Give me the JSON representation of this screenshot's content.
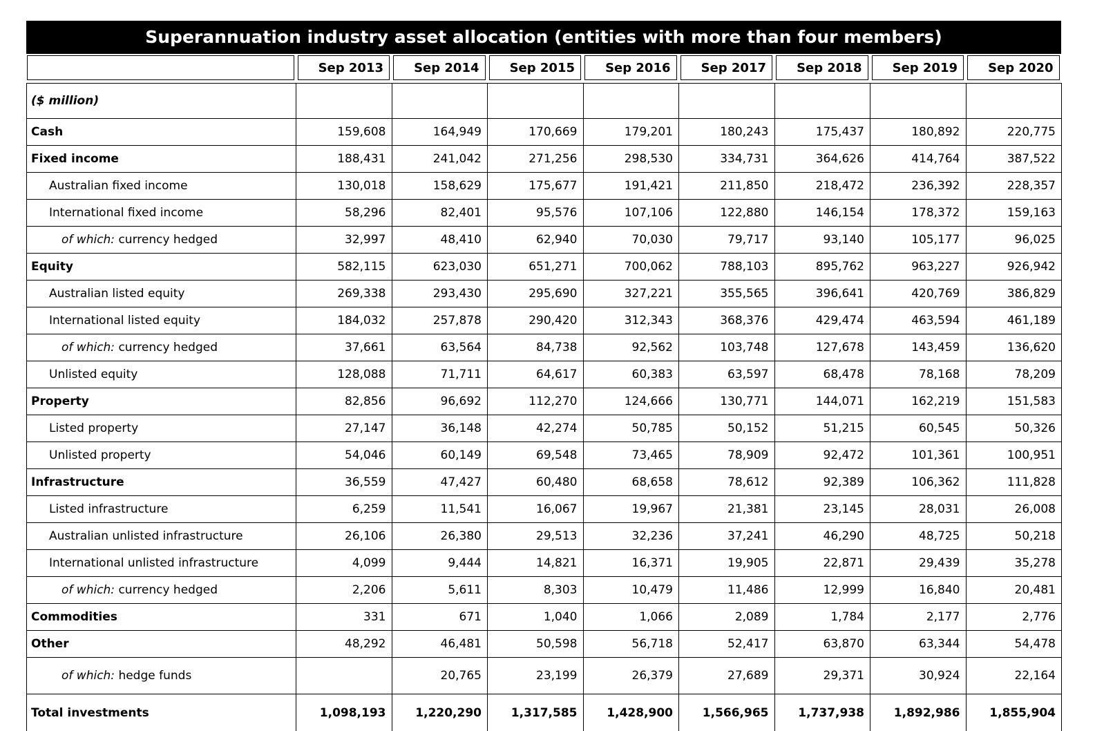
{
  "chart_data": {
    "type": "table",
    "title": "Superannuation industry asset allocation (entities with more than four members)",
    "unit_label": "($ million)",
    "columns": [
      "Sep 2013",
      "Sep 2014",
      "Sep 2015",
      "Sep 2016",
      "Sep 2017",
      "Sep 2018",
      "Sep 2019",
      "Sep 2020"
    ],
    "rows": [
      {
        "kind": "unit",
        "label": "($ million)",
        "values": [
          "",
          "",
          "",
          "",
          "",
          "",
          "",
          ""
        ]
      },
      {
        "kind": "category",
        "label": "Cash",
        "values": [
          "159,608",
          "164,949",
          "170,669",
          "179,201",
          "180,243",
          "175,437",
          "180,892",
          "220,775"
        ]
      },
      {
        "kind": "category",
        "label": "Fixed income",
        "values": [
          "188,431",
          "241,042",
          "271,256",
          "298,530",
          "334,731",
          "364,626",
          "414,764",
          "387,522"
        ]
      },
      {
        "kind": "sub",
        "label": "Australian fixed income",
        "values": [
          "130,018",
          "158,629",
          "175,677",
          "191,421",
          "211,850",
          "218,472",
          "236,392",
          "228,357"
        ]
      },
      {
        "kind": "sub",
        "label": "International fixed income",
        "values": [
          "58,296",
          "82,401",
          "95,576",
          "107,106",
          "122,880",
          "146,154",
          "178,372",
          "159,163"
        ]
      },
      {
        "kind": "ofwhich",
        "label_italic": "of which:",
        "label": " currency hedged",
        "values": [
          "32,997",
          "48,410",
          "62,940",
          "70,030",
          "79,717",
          "93,140",
          "105,177",
          "96,025"
        ]
      },
      {
        "kind": "category",
        "label": "Equity",
        "values": [
          "582,115",
          "623,030",
          "651,271",
          "700,062",
          "788,103",
          "895,762",
          "963,227",
          "926,942"
        ]
      },
      {
        "kind": "sub",
        "label": "Australian listed equity",
        "values": [
          "269,338",
          "293,430",
          "295,690",
          "327,221",
          "355,565",
          "396,641",
          "420,769",
          "386,829"
        ]
      },
      {
        "kind": "sub",
        "label": "International listed equity",
        "values": [
          "184,032",
          "257,878",
          "290,420",
          "312,343",
          "368,376",
          "429,474",
          "463,594",
          "461,189"
        ]
      },
      {
        "kind": "ofwhich",
        "label_italic": "of which:",
        "label": " currency hedged",
        "values": [
          "37,661",
          "63,564",
          "84,738",
          "92,562",
          "103,748",
          "127,678",
          "143,459",
          "136,620"
        ]
      },
      {
        "kind": "sub",
        "label": "Unlisted equity",
        "values": [
          "128,088",
          "71,711",
          "64,617",
          "60,383",
          "63,597",
          "68,478",
          "78,168",
          "78,209"
        ]
      },
      {
        "kind": "category",
        "label": "Property",
        "values": [
          "82,856",
          "96,692",
          "112,270",
          "124,666",
          "130,771",
          "144,071",
          "162,219",
          "151,583"
        ]
      },
      {
        "kind": "sub",
        "label": "Listed property",
        "values": [
          "27,147",
          "36,148",
          "42,274",
          "50,785",
          "50,152",
          "51,215",
          "60,545",
          "50,326"
        ]
      },
      {
        "kind": "sub",
        "label": "Unlisted property",
        "values": [
          "54,046",
          "60,149",
          "69,548",
          "73,465",
          "78,909",
          "92,472",
          "101,361",
          "100,951"
        ]
      },
      {
        "kind": "category",
        "label": "Infrastructure",
        "values": [
          "36,559",
          "47,427",
          "60,480",
          "68,658",
          "78,612",
          "92,389",
          "106,362",
          "111,828"
        ]
      },
      {
        "kind": "sub",
        "label": "Listed infrastructure",
        "values": [
          "6,259",
          "11,541",
          "16,067",
          "19,967",
          "21,381",
          "23,145",
          "28,031",
          "26,008"
        ]
      },
      {
        "kind": "sub",
        "label": "Australian unlisted infrastructure",
        "values": [
          "26,106",
          "26,380",
          "29,513",
          "32,236",
          "37,241",
          "46,290",
          "48,725",
          "50,218"
        ]
      },
      {
        "kind": "sub",
        "label": "International unlisted infrastructure",
        "values": [
          "4,099",
          "9,444",
          "14,821",
          "16,371",
          "19,905",
          "22,871",
          "29,439",
          "35,278"
        ]
      },
      {
        "kind": "ofwhich",
        "label_italic": "of which:",
        "label": " currency hedged",
        "values": [
          "2,206",
          "5,611",
          "8,303",
          "10,479",
          "11,486",
          "12,999",
          "16,840",
          "20,481"
        ]
      },
      {
        "kind": "category",
        "label": "Commodities",
        "values": [
          "331",
          "671",
          "1,040",
          "1,066",
          "2,089",
          "1,784",
          "2,177",
          "2,776"
        ]
      },
      {
        "kind": "category",
        "label": "Other",
        "values": [
          "48,292",
          "46,481",
          "50,598",
          "56,718",
          "52,417",
          "63,870",
          "63,344",
          "54,478"
        ]
      },
      {
        "kind": "ofwhich",
        "tall": true,
        "label_italic": "of which:",
        "label": " hedge funds",
        "values": [
          "",
          "20,765",
          "23,199",
          "26,379",
          "27,689",
          "29,371",
          "30,924",
          "22,164"
        ]
      },
      {
        "kind": "total",
        "label": "Total investments",
        "values": [
          "1,098,193",
          "1,220,290",
          "1,317,585",
          "1,428,900",
          "1,566,965",
          "1,737,938",
          "1,892,986",
          "1,855,904"
        ]
      }
    ]
  }
}
